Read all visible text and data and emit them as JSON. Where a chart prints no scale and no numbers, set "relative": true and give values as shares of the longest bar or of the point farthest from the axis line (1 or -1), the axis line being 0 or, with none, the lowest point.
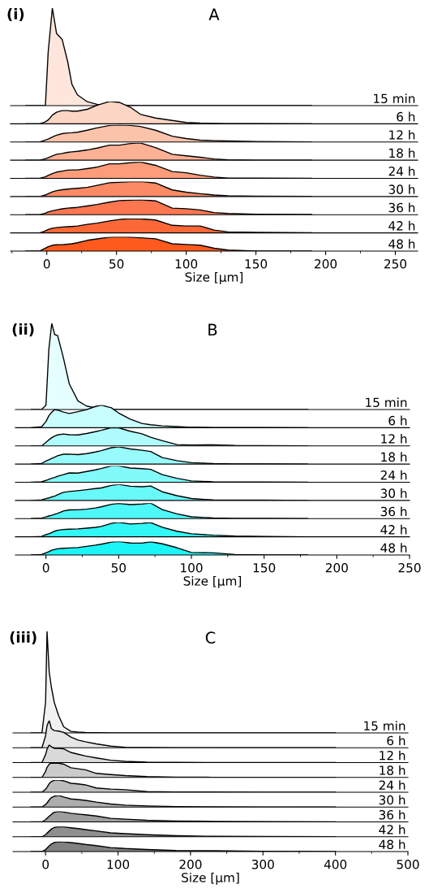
{
  "chart_data": [
    {
      "type": "area",
      "title": "A",
      "annotations": [
        "(i)"
      ],
      "relative": true,
      "xlim": [
        -26,
        266
      ],
      "xticks": [
        0,
        50,
        100,
        150,
        200,
        250
      ],
      "tick_labels": false,
      "x": [
        -15,
        -5,
        -1,
        1,
        4,
        7,
        11,
        15,
        18,
        22,
        29,
        36,
        45,
        52,
        60,
        67,
        78,
        90,
        100,
        110,
        120,
        130,
        150,
        190
      ],
      "series": [
        {
          "name": "15 min",
          "color": "#fee6dc",
          "values": [
            0,
            0,
            0,
            0.55,
            1.0,
            0.74,
            0.68,
            0.45,
            0.22,
            0.11,
            0.04,
            0.014,
            0.006,
            0.004,
            0.002,
            0,
            0,
            0,
            0,
            0,
            0,
            0,
            0,
            0
          ]
        }
      ]
    },
    {
      "type": "area",
      "relative": true,
      "xlim": [
        -26,
        266
      ],
      "xticks": [
        0,
        50,
        100,
        150,
        200,
        250
      ],
      "tick_labels": false,
      "x": [
        -15,
        -5,
        -1,
        1,
        4,
        7,
        11,
        15,
        18,
        22,
        29,
        36,
        45,
        52,
        60,
        67,
        78,
        90,
        100,
        110,
        120,
        130,
        150,
        190
      ],
      "series": [
        {
          "name": "6 h",
          "color": "#fdd5c4",
          "values": [
            0,
            0,
            0.09,
            0.17,
            0.39,
            0.52,
            0.59,
            0.59,
            0.57,
            0.57,
            0.65,
            0.83,
            1,
            0.96,
            0.74,
            0.43,
            0.26,
            0.15,
            0.06,
            0.03,
            0.02,
            0.01,
            0.004,
            0
          ]
        }
      ]
    },
    {
      "type": "area",
      "relative": true,
      "xlim": [
        -26,
        266
      ],
      "xticks": [
        0,
        50,
        100,
        150,
        200,
        250
      ],
      "tick_labels": false,
      "x": [
        -15,
        -5,
        -1,
        1,
        4,
        7,
        11,
        15,
        18,
        22,
        29,
        36,
        45,
        52,
        60,
        67,
        78,
        90,
        100,
        110,
        120,
        130,
        150,
        190
      ],
      "series": [
        {
          "name": "12 h",
          "color": "#fcc3ab",
          "values": [
            0,
            0,
            0.11,
            0.17,
            0.29,
            0.4,
            0.49,
            0.53,
            0.54,
            0.57,
            0.69,
            0.83,
            0.97,
            1,
            0.97,
            0.91,
            0.69,
            0.34,
            0.2,
            0.11,
            0.08,
            0.06,
            0.03,
            0
          ]
        }
      ]
    },
    {
      "type": "area",
      "relative": true,
      "xlim": [
        -26,
        266
      ],
      "xticks": [
        0,
        50,
        100,
        150,
        200,
        250
      ],
      "tick_labels": false,
      "x": [
        -15,
        -5,
        -1,
        1,
        4,
        7,
        11,
        15,
        18,
        22,
        29,
        36,
        45,
        52,
        60,
        67,
        78,
        90,
        100,
        110,
        120,
        130,
        150,
        190
      ],
      "series": [
        {
          "name": "18 h",
          "color": "#fcb094",
          "values": [
            0,
            0,
            0.08,
            0.14,
            0.25,
            0.34,
            0.39,
            0.45,
            0.48,
            0.51,
            0.59,
            0.7,
            0.87,
            0.87,
            0.96,
            1,
            0.73,
            0.34,
            0.25,
            0.17,
            0.07,
            0.02,
            0,
            0
          ]
        }
      ]
    },
    {
      "type": "area",
      "relative": true,
      "xlim": [
        -26,
        266
      ],
      "xticks": [
        0,
        50,
        100,
        150,
        200,
        250
      ],
      "tick_labels": false,
      "x": [
        -15,
        -5,
        -1,
        1,
        4,
        7,
        11,
        15,
        18,
        22,
        29,
        36,
        45,
        52,
        60,
        67,
        78,
        90,
        100,
        110,
        120,
        130,
        150,
        190
      ],
      "series": [
        {
          "name": "24 h",
          "color": "#fc9c7a",
          "values": [
            0,
            0,
            0.09,
            0.18,
            0.29,
            0.38,
            0.44,
            0.5,
            0.51,
            0.51,
            0.59,
            0.68,
            0.88,
            0.88,
            0.95,
            1,
            0.79,
            0.41,
            0.34,
            0.19,
            0.08,
            0.02,
            0.01,
            0
          ]
        }
      ]
    },
    {
      "type": "area",
      "relative": true,
      "xlim": [
        -26,
        266
      ],
      "xticks": [
        0,
        50,
        100,
        150,
        200,
        250
      ],
      "tick_labels": false,
      "x": [
        -15,
        -5,
        -1,
        1,
        4,
        7,
        11,
        15,
        18,
        22,
        29,
        36,
        45,
        52,
        60,
        67,
        78,
        90,
        100,
        110,
        120,
        130,
        150,
        190
      ],
      "series": [
        {
          "name": "30 h",
          "color": "#fc8a64",
          "values": [
            0,
            0,
            0.1,
            0.19,
            0.31,
            0.39,
            0.45,
            0.49,
            0.52,
            0.55,
            0.61,
            0.74,
            0.92,
            0.95,
            0.99,
            1,
            0.9,
            0.44,
            0.29,
            0.19,
            0.1,
            0.05,
            0.02,
            0.01
          ]
        }
      ]
    },
    {
      "type": "area",
      "relative": true,
      "xlim": [
        -26,
        266
      ],
      "xticks": [
        0,
        50,
        100,
        150,
        200,
        250
      ],
      "tick_labels": false,
      "x": [
        -15,
        -5,
        -1,
        1,
        4,
        7,
        11,
        15,
        18,
        22,
        29,
        36,
        45,
        52,
        60,
        67,
        78,
        90,
        100,
        110,
        120,
        130,
        150,
        190
      ],
      "series": [
        {
          "name": "36 h",
          "color": "#fc7650",
          "values": [
            0,
            0,
            0.1,
            0.18,
            0.26,
            0.32,
            0.39,
            0.44,
            0.46,
            0.49,
            0.58,
            0.68,
            0.84,
            0.94,
            0.97,
            1,
            0.92,
            0.44,
            0.4,
            0.32,
            0.14,
            0.08,
            0.03,
            0.01
          ]
        }
      ]
    },
    {
      "type": "area",
      "relative": true,
      "xlim": [
        -26,
        266
      ],
      "xticks": [
        0,
        50,
        100,
        150,
        200,
        250
      ],
      "tick_labels": false,
      "x": [
        -15,
        -5,
        -1,
        1,
        4,
        7,
        11,
        15,
        18,
        22,
        29,
        36,
        45,
        52,
        60,
        67,
        78,
        90,
        100,
        110,
        120,
        130,
        150,
        190
      ],
      "series": [
        {
          "name": "42 h",
          "color": "#fd6837",
          "values": [
            0,
            0,
            0.14,
            0.24,
            0.33,
            0.37,
            0.41,
            0.43,
            0.45,
            0.48,
            0.6,
            0.68,
            0.84,
            0.94,
            1,
            0.99,
            0.9,
            0.53,
            0.48,
            0.48,
            0.2,
            0.07,
            0.04,
            0.01
          ]
        }
      ]
    },
    {
      "type": "area",
      "relative": true,
      "xlabel": "Size [μm]",
      "xlim": [
        -26,
        266
      ],
      "xticks": [
        0,
        50,
        100,
        150,
        200,
        250
      ],
      "x": [
        -15,
        -5,
        -1,
        1,
        4,
        7,
        11,
        15,
        18,
        22,
        29,
        36,
        45,
        52,
        60,
        67,
        78,
        90,
        100,
        110,
        120,
        130,
        150,
        190
      ],
      "series": [
        {
          "name": "48 h",
          "color": "#fe5a1d",
          "values": [
            0,
            0.01,
            0.2,
            0.31,
            0.41,
            0.44,
            0.45,
            0.48,
            0.51,
            0.58,
            0.75,
            0.85,
            0.97,
            1,
            0.98,
            0.93,
            0.86,
            0.51,
            0.46,
            0.41,
            0.2,
            0.07,
            0.01,
            0
          ]
        }
      ]
    },
    {
      "type": "area",
      "title": "B",
      "annotations": [
        "(ii)"
      ],
      "relative": true,
      "xlim": [
        -21,
        250
      ],
      "xticks": [
        0,
        50,
        100,
        150,
        200,
        250
      ],
      "tick_labels": false,
      "x": [
        -10,
        -3,
        0,
        2,
        4,
        6,
        8,
        12,
        16,
        22,
        28,
        34,
        38,
        45,
        50,
        58,
        66,
        72,
        80,
        90,
        100,
        115,
        130,
        150,
        180
      ],
      "series": [
        {
          "name": "15 min",
          "color": "#e5ffff",
          "values": [
            0,
            0,
            0.05,
            0.7,
            1.0,
            0.87,
            0.86,
            0.6,
            0.3,
            0.1,
            0.04,
            0.02,
            0.01,
            0.004,
            0,
            0,
            0,
            0,
            0,
            0,
            0,
            0,
            0,
            0,
            0
          ]
        }
      ]
    },
    {
      "type": "area",
      "relative": true,
      "xlim": [
        -21,
        250
      ],
      "xticks": [
        0,
        50,
        100,
        150,
        200,
        250
      ],
      "tick_labels": false,
      "x": [
        -10,
        -3,
        0,
        2,
        4,
        6,
        8,
        12,
        16,
        22,
        28,
        34,
        38,
        45,
        50,
        58,
        66,
        72,
        80,
        90,
        100,
        115,
        130,
        150,
        180
      ],
      "series": [
        {
          "name": "6 h",
          "color": "#c9fefe",
          "values": [
            0,
            0.04,
            0.27,
            0.53,
            0.69,
            0.8,
            0.78,
            0.69,
            0.63,
            0.71,
            0.8,
            0.94,
            1,
            0.88,
            0.65,
            0.38,
            0.19,
            0.13,
            0.08,
            0.05,
            0.02,
            0.01,
            0.01,
            0.004,
            0
          ]
        }
      ]
    },
    {
      "type": "area",
      "relative": true,
      "xlim": [
        -21,
        250
      ],
      "xticks": [
        0,
        50,
        100,
        150,
        200,
        250
      ],
      "tick_labels": false,
      "x": [
        -10,
        -3,
        0,
        2,
        4,
        6,
        8,
        12,
        16,
        22,
        28,
        34,
        38,
        45,
        50,
        58,
        66,
        72,
        80,
        90,
        100,
        115,
        130,
        150,
        180
      ],
      "series": [
        {
          "name": "12 h",
          "color": "#b0fcfc",
          "values": [
            0,
            0,
            0.19,
            0.33,
            0.45,
            0.54,
            0.6,
            0.65,
            0.61,
            0.6,
            0.68,
            0.78,
            0.85,
            1,
            0.99,
            0.8,
            0.66,
            0.47,
            0.28,
            0.07,
            0.05,
            0.06,
            0.02,
            0.01,
            0
          ]
        }
      ]
    },
    {
      "type": "area",
      "relative": true,
      "xlim": [
        -21,
        250
      ],
      "xticks": [
        0,
        50,
        100,
        150,
        200,
        250
      ],
      "tick_labels": false,
      "x": [
        -10,
        -3,
        0,
        2,
        4,
        6,
        8,
        12,
        16,
        22,
        28,
        34,
        38,
        45,
        50,
        58,
        66,
        72,
        80,
        90,
        100,
        115,
        130,
        150,
        180
      ],
      "series": [
        {
          "name": "18 h",
          "color": "#98fbfb",
          "values": [
            0,
            0.03,
            0.18,
            0.25,
            0.33,
            0.4,
            0.48,
            0.57,
            0.58,
            0.55,
            0.61,
            0.7,
            0.78,
            0.95,
            1,
            0.88,
            0.8,
            0.73,
            0.38,
            0.2,
            0.08,
            0.03,
            0.01,
            0.01,
            0
          ]
        }
      ]
    },
    {
      "type": "area",
      "relative": true,
      "xlim": [
        -21,
        250
      ],
      "xticks": [
        0,
        50,
        100,
        150,
        200,
        250
      ],
      "tick_labels": false,
      "x": [
        -10,
        -3,
        0,
        2,
        4,
        6,
        8,
        12,
        16,
        22,
        28,
        34,
        38,
        45,
        50,
        58,
        66,
        72,
        80,
        90,
        100,
        115,
        130,
        150,
        180
      ],
      "series": [
        {
          "name": "24 h",
          "color": "#83fafa",
          "values": [
            0,
            0.03,
            0.11,
            0.18,
            0.24,
            0.29,
            0.37,
            0.47,
            0.57,
            0.56,
            0.66,
            0.76,
            0.84,
            1,
            1,
            0.87,
            0.83,
            0.79,
            0.47,
            0.24,
            0.08,
            0.03,
            0.02,
            0.01,
            0
          ]
        }
      ]
    },
    {
      "type": "area",
      "relative": true,
      "xlim": [
        -21,
        250
      ],
      "xticks": [
        0,
        50,
        100,
        150,
        200,
        250
      ],
      "tick_labels": false,
      "x": [
        -10,
        -3,
        0,
        2,
        4,
        6,
        8,
        12,
        16,
        22,
        28,
        34,
        38,
        45,
        50,
        58,
        66,
        72,
        80,
        90,
        100,
        115,
        130,
        150,
        180
      ],
      "series": [
        {
          "name": "30 h",
          "color": "#68f9f9",
          "values": [
            0,
            0.03,
            0.11,
            0.16,
            0.22,
            0.27,
            0.35,
            0.51,
            0.56,
            0.61,
            0.67,
            0.74,
            0.78,
            0.94,
            1,
            0.89,
            0.86,
            0.9,
            0.54,
            0.3,
            0.12,
            0.03,
            0.02,
            0.02,
            0
          ]
        }
      ]
    },
    {
      "type": "area",
      "relative": true,
      "xlim": [
        -21,
        250
      ],
      "xticks": [
        0,
        50,
        100,
        150,
        200,
        250
      ],
      "tick_labels": false,
      "x": [
        -10,
        -3,
        0,
        2,
        4,
        6,
        8,
        12,
        16,
        22,
        28,
        34,
        38,
        45,
        50,
        58,
        66,
        72,
        80,
        90,
        100,
        115,
        130,
        150,
        180
      ],
      "series": [
        {
          "name": "36 h",
          "color": "#4ff8f8",
          "values": [
            0,
            0.03,
            0.11,
            0.17,
            0.22,
            0.28,
            0.33,
            0.49,
            0.56,
            0.57,
            0.61,
            0.69,
            0.76,
            0.92,
            0.98,
            0.9,
            0.94,
            1,
            0.58,
            0.31,
            0.12,
            0.04,
            0.02,
            0.02,
            0
          ]
        }
      ]
    },
    {
      "type": "area",
      "relative": true,
      "xlim": [
        -21,
        250
      ],
      "xticks": [
        0,
        50,
        100,
        150,
        200,
        250
      ],
      "tick_labels": false,
      "x": [
        -10,
        -3,
        0,
        2,
        4,
        6,
        8,
        12,
        16,
        22,
        28,
        34,
        38,
        45,
        50,
        58,
        66,
        72,
        80,
        90,
        100,
        115,
        130,
        150,
        180
      ],
      "series": [
        {
          "name": "42 h",
          "color": "#33f6f6",
          "values": [
            0,
            0.03,
            0.15,
            0.21,
            0.3,
            0.39,
            0.45,
            0.51,
            0.53,
            0.55,
            0.6,
            0.66,
            0.72,
            0.93,
            1,
            0.89,
            0.93,
            0.99,
            0.66,
            0.39,
            0.21,
            0.11,
            0.05,
            0.02,
            0
          ]
        }
      ]
    },
    {
      "type": "area",
      "relative": true,
      "xlabel": "Size [μm]",
      "xlim": [
        -21,
        250
      ],
      "xticks": [
        0,
        50,
        100,
        150,
        200,
        250
      ],
      "x": [
        -10,
        -3,
        0,
        2,
        4,
        6,
        8,
        12,
        16,
        22,
        28,
        34,
        38,
        45,
        50,
        58,
        66,
        72,
        80,
        90,
        100,
        115,
        130,
        150,
        180
      ],
      "series": [
        {
          "name": "48 h",
          "color": "#1cf5f5",
          "values": [
            0,
            0.03,
            0.16,
            0.25,
            0.35,
            0.41,
            0.46,
            0.5,
            0.52,
            0.55,
            0.64,
            0.73,
            0.8,
            0.96,
            1,
            0.89,
            0.88,
            0.98,
            0.83,
            0.54,
            0.19,
            0.16,
            0.04,
            0.01,
            0
          ]
        }
      ]
    },
    {
      "type": "area",
      "title": "C",
      "annotations": [
        "(iii)"
      ],
      "relative": true,
      "xlim": [
        -45,
        500
      ],
      "xticks": [
        0,
        100,
        200,
        300,
        400,
        500
      ],
      "tick_labels": false,
      "x": [
        -20,
        -5,
        0,
        2,
        5,
        8,
        12,
        18,
        25,
        35,
        45,
        55,
        70,
        90,
        110,
        140,
        180,
        230,
        300,
        400
      ],
      "series": [
        {
          "name": "15 min",
          "color": "#f2f2f2",
          "values": [
            0,
            0,
            0.3,
            1.0,
            0.6,
            0.45,
            0.3,
            0.17,
            0.06,
            0.015,
            0.008,
            0.005,
            0.003,
            0.001,
            0,
            0,
            0,
            0,
            0,
            0
          ]
        }
      ]
    },
    {
      "type": "area",
      "relative": true,
      "xlim": [
        -45,
        500
      ],
      "xticks": [
        0,
        100,
        200,
        300,
        400,
        500
      ],
      "tick_labels": false,
      "x": [
        -20,
        -5,
        0,
        2,
        5,
        8,
        12,
        18,
        25,
        35,
        45,
        55,
        70,
        90,
        110,
        140,
        180,
        230,
        300,
        400
      ],
      "series": [
        {
          "name": "6 h",
          "color": "#e6e6e6",
          "values": [
            0,
            0,
            0.44,
            0.81,
            1,
            0.7,
            0.63,
            0.61,
            0.56,
            0.39,
            0.28,
            0.22,
            0.14,
            0.06,
            0.02,
            0.01,
            0.004,
            0.004,
            0,
            0
          ]
        }
      ]
    },
    {
      "type": "area",
      "relative": true,
      "xlim": [
        -45,
        500
      ],
      "xticks": [
        0,
        100,
        200,
        300,
        400,
        500
      ],
      "tick_labels": false,
      "x": [
        -20,
        -5,
        0,
        2,
        5,
        8,
        12,
        18,
        25,
        35,
        45,
        55,
        70,
        90,
        110,
        140,
        180,
        230,
        300,
        400
      ],
      "series": [
        {
          "name": "12 h",
          "color": "#d9d9d9",
          "values": [
            0,
            0,
            0.45,
            0.74,
            1,
            0.88,
            0.8,
            0.8,
            0.77,
            0.57,
            0.47,
            0.37,
            0.26,
            0.13,
            0.07,
            0.02,
            0.01,
            0.006,
            0.006,
            0
          ]
        }
      ]
    },
    {
      "type": "area",
      "relative": true,
      "xlim": [
        -45,
        500
      ],
      "xticks": [
        0,
        100,
        200,
        300,
        400,
        500
      ],
      "tick_labels": false,
      "x": [
        -20,
        -5,
        0,
        2,
        5,
        8,
        12,
        18,
        25,
        35,
        45,
        55,
        70,
        90,
        110,
        140,
        180,
        230,
        300,
        400
      ],
      "series": [
        {
          "name": "18 h",
          "color": "#cbcbcb",
          "values": [
            0,
            0,
            0.42,
            0.7,
            0.92,
            0.99,
            1,
            0.99,
            0.92,
            0.67,
            0.6,
            0.53,
            0.28,
            0.2,
            0.13,
            0.06,
            0.02,
            0.01,
            0.007,
            0
          ]
        }
      ]
    },
    {
      "type": "area",
      "relative": true,
      "xlim": [
        -45,
        500
      ],
      "xticks": [
        0,
        100,
        200,
        300,
        400,
        500
      ],
      "tick_labels": false,
      "x": [
        -20,
        -5,
        0,
        2,
        5,
        8,
        12,
        18,
        25,
        35,
        45,
        55,
        70,
        90,
        110,
        140,
        180,
        230,
        300,
        400
      ],
      "series": [
        {
          "name": "24 h",
          "color": "#bcbcbc",
          "values": [
            0,
            0,
            0.25,
            0.41,
            0.7,
            0.87,
            0.99,
            1,
            0.93,
            0.73,
            0.68,
            0.6,
            0.35,
            0.26,
            0.21,
            0.05,
            0.02,
            0.02,
            0.008,
            0
          ]
        }
      ]
    },
    {
      "type": "area",
      "relative": true,
      "xlim": [
        -45,
        500
      ],
      "xticks": [
        0,
        100,
        200,
        300,
        400,
        500
      ],
      "tick_labels": false,
      "x": [
        -20,
        -5,
        0,
        2,
        5,
        8,
        12,
        18,
        25,
        35,
        45,
        55,
        70,
        90,
        110,
        140,
        180,
        230,
        300,
        400
      ],
      "series": [
        {
          "name": "30 h",
          "color": "#adadad",
          "values": [
            0,
            0,
            0.22,
            0.35,
            0.61,
            0.82,
            0.94,
            1,
            0.87,
            0.7,
            0.65,
            0.58,
            0.43,
            0.26,
            0.17,
            0.1,
            0.04,
            0.02,
            0.009,
            0
          ]
        }
      ]
    },
    {
      "type": "area",
      "relative": true,
      "xlim": [
        -45,
        500
      ],
      "xticks": [
        0,
        100,
        200,
        300,
        400,
        500
      ],
      "tick_labels": false,
      "x": [
        -20,
        -5,
        0,
        2,
        5,
        8,
        12,
        18,
        25,
        35,
        45,
        55,
        70,
        90,
        110,
        140,
        180,
        230,
        300,
        400
      ],
      "series": [
        {
          "name": "36 h",
          "color": "#9e9e9e",
          "values": [
            0,
            0,
            0.21,
            0.34,
            0.53,
            0.72,
            0.91,
            1,
            0.93,
            0.82,
            0.74,
            0.67,
            0.56,
            0.34,
            0.26,
            0.15,
            0.09,
            0.05,
            0.02,
            0
          ]
        }
      ]
    },
    {
      "type": "area",
      "relative": true,
      "xlim": [
        -45,
        500
      ],
      "xticks": [
        0,
        100,
        200,
        300,
        400,
        500
      ],
      "tick_labels": false,
      "x": [
        -20,
        -5,
        0,
        2,
        5,
        8,
        12,
        18,
        25,
        35,
        45,
        55,
        70,
        90,
        110,
        140,
        180,
        230,
        300,
        400
      ],
      "series": [
        {
          "name": "42 h",
          "color": "#8f8f8f",
          "values": [
            0,
            0,
            0.2,
            0.35,
            0.55,
            0.75,
            0.92,
            1,
            0.97,
            0.88,
            0.8,
            0.7,
            0.57,
            0.38,
            0.3,
            0.2,
            0.1,
            0.04,
            0.02,
            0
          ]
        }
      ]
    },
    {
      "type": "area",
      "relative": true,
      "xlabel": "Size [μm]",
      "xlim": [
        -45,
        500
      ],
      "xticks": [
        0,
        100,
        200,
        300,
        400,
        500
      ],
      "x": [
        -20,
        -5,
        0,
        2,
        5,
        8,
        12,
        18,
        25,
        35,
        45,
        55,
        70,
        90,
        110,
        140,
        180,
        230,
        300,
        400
      ],
      "series": [
        {
          "name": "48 h",
          "color": "#808080",
          "values": [
            0,
            0,
            0.2,
            0.35,
            0.56,
            0.76,
            0.91,
            1,
            0.97,
            0.89,
            0.81,
            0.71,
            0.59,
            0.4,
            0.3,
            0.2,
            0.1,
            0.08,
            0.02,
            0
          ]
        }
      ]
    }
  ]
}
